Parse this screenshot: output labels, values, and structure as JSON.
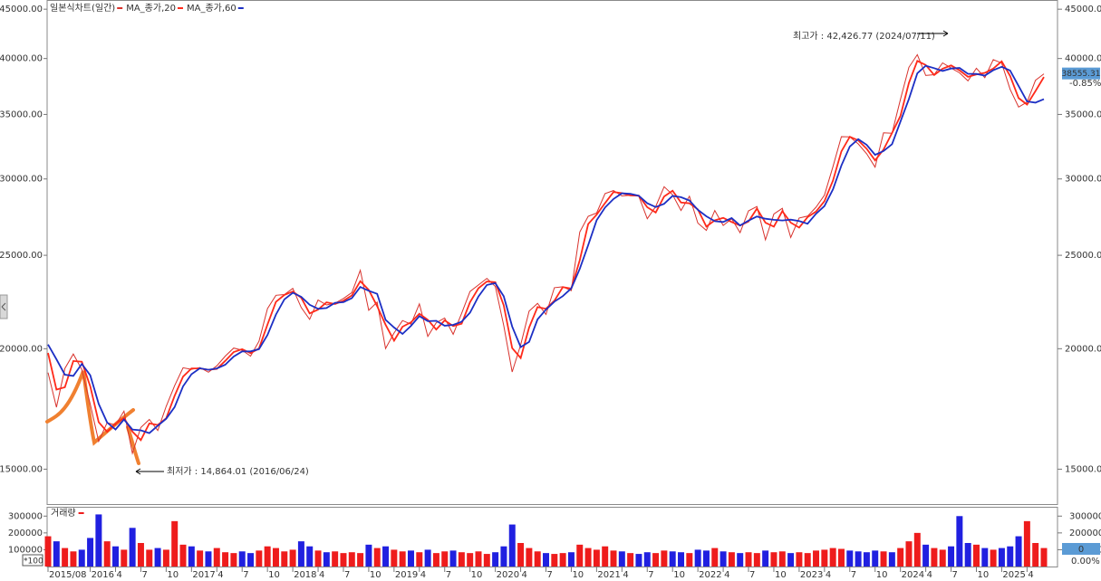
{
  "chart_data": [
    {
      "type": "line",
      "log_scale": true,
      "grid": false,
      "categories": [
        "2015/08",
        null,
        null,
        null,
        null,
        "2016",
        null,
        null,
        "4",
        null,
        null,
        "7",
        null,
        null,
        "10",
        null,
        null,
        "2017",
        null,
        null,
        "4",
        null,
        null,
        "7",
        null,
        null,
        "10",
        null,
        null,
        "2018",
        null,
        null,
        "4",
        null,
        null,
        "7",
        null,
        null,
        "10",
        null,
        null,
        "2019",
        null,
        null,
        "4",
        null,
        null,
        "7",
        null,
        null,
        "10",
        null,
        null,
        "2020",
        null,
        null,
        "4",
        null,
        null,
        "7",
        null,
        null,
        "10",
        null,
        null,
        "2021",
        null,
        null,
        "4",
        null,
        null,
        "7",
        null,
        null,
        "10",
        null,
        null,
        "2022",
        null,
        null,
        "4",
        null,
        null,
        "7",
        null,
        null,
        "10",
        null,
        null,
        "2023",
        null,
        null,
        "4",
        null,
        null,
        "7",
        null,
        null,
        "10",
        null,
        null,
        "2024",
        null,
        null,
        "4",
        null,
        null,
        "7",
        null,
        null,
        "10",
        null,
        null,
        "2025",
        null,
        null,
        "4",
        null,
        null
      ],
      "ylim": [
        13800,
        45900
      ],
      "yticks": [
        {
          "value": 15000,
          "label": "15000.00"
        },
        {
          "value": 20000,
          "label": "20000.00"
        },
        {
          "value": 25000,
          "label": "25000.00"
        },
        {
          "value": 30000,
          "label": "30000.00"
        },
        {
          "value": 35000,
          "label": "35000.00"
        },
        {
          "value": 40000,
          "label": "40000.00"
        },
        {
          "value": 45000,
          "label": "45000.00"
        }
      ],
      "series": [
        {
          "name": "일본식차트(일간)",
          "color": "#d8322c",
          "values": [
            18890,
            17390,
            19080,
            19750,
            19030,
            17520,
            16030,
            16760,
            16670,
            17230,
            15580,
            16570,
            16890,
            16450,
            17430,
            18310,
            19110,
            19040,
            19120,
            18910,
            19200,
            19650,
            20030,
            19930,
            19650,
            20360,
            22010,
            22720,
            22760,
            23100,
            22070,
            21450,
            22470,
            22200,
            22300,
            22550,
            22870,
            24120,
            21920,
            22350,
            20010,
            20770,
            21390,
            21210,
            22260,
            20600,
            21280,
            21520,
            20700,
            21760,
            22930,
            23290,
            23660,
            23210,
            21140,
            18920,
            20190,
            21880,
            22290,
            21710,
            23140,
            23190,
            22980,
            26430,
            27440,
            27660,
            28970,
            29180,
            28810,
            28860,
            28790,
            27280,
            28090,
            29450,
            28890,
            27820,
            28790,
            27000,
            26530,
            27820,
            26850,
            27280,
            26390,
            27800,
            28090,
            25940,
            27590,
            27970,
            26090,
            27330,
            27450,
            28040,
            28860,
            30890,
            33190,
            33170,
            32620,
            31860,
            30860,
            33490,
            33460,
            36290,
            39170,
            40370,
            38410,
            38490,
            39580,
            39100,
            38650,
            37920,
            39080,
            38210,
            39890,
            39570,
            37160,
            35620,
            36050,
            37970,
            38560
          ]
        },
        {
          "name": "MA_종가,20",
          "color": "#ff2a1a",
          "values": [
            19800,
            18140,
            18240,
            19420,
            19390,
            18280,
            16780,
            16400,
            16720,
            16950,
            16410,
            16080,
            16730,
            16670,
            16940,
            17870,
            18710,
            19080,
            19080,
            19020,
            19060,
            19430,
            19840,
            19980,
            19790,
            20010,
            21190,
            22370,
            22740,
            22930,
            22590,
            21760,
            21960,
            22340,
            22250,
            22430,
            22710,
            23500,
            23020,
            22140,
            21180,
            20390,
            21080,
            21300,
            21740,
            21430,
            20940,
            21400,
            21110,
            21230,
            22350,
            23110,
            23480,
            23440,
            22180,
            20030,
            19560,
            21040,
            22090,
            22000,
            22430,
            23170,
            23090,
            24710,
            26940,
            27550,
            28320,
            29080,
            29000,
            28840,
            28830,
            28040,
            27690,
            28770,
            29170,
            28360,
            28310,
            27900,
            26770,
            27180,
            27340,
            27070,
            26840,
            27100,
            27950,
            27020,
            26770,
            27780,
            27030,
            26710,
            27390,
            27750,
            28450,
            29880,
            32040,
            33180,
            32900,
            32240,
            31360,
            32180,
            33480,
            34880,
            37730,
            39770,
            39390,
            38450,
            39040,
            39340,
            38880,
            38290,
            38500,
            38650,
            39050,
            39730,
            38370,
            36390,
            35840,
            37010,
            38270
          ]
        },
        {
          "name": "MA_종가,60",
          "color": "#1c2fc4",
          "values": [
            20200,
            19500,
            18800,
            18740,
            19290,
            18770,
            17530,
            16770,
            16490,
            16890,
            16490,
            16460,
            16350,
            16640,
            16920,
            17400,
            18280,
            18820,
            19090,
            19020,
            19080,
            19250,
            19630,
            19870,
            19870,
            19980,
            20670,
            21700,
            22500,
            22860,
            22640,
            22210,
            22000,
            22040,
            22320,
            22350,
            22570,
            23180,
            22970,
            22800,
            21430,
            21040,
            20720,
            21120,
            21620,
            21360,
            21380,
            21130,
            21170,
            21330,
            21800,
            22660,
            23290,
            23390,
            22670,
            21090,
            20080,
            20330,
            21450,
            21960,
            22380,
            22680,
            23100,
            24200,
            25620,
            27180,
            28020,
            28600,
            28990,
            28950,
            28820,
            28310,
            28050,
            28270,
            28810,
            28720,
            28500,
            27870,
            27440,
            27120,
            27070,
            27320,
            26840,
            27160,
            27430,
            27280,
            27210,
            27170,
            27220,
            27130,
            26960,
            27610,
            28120,
            29260,
            30980,
            32420,
            32990,
            32550,
            31780,
            32070,
            32600,
            34410,
            36310,
            38610,
            39320,
            39090,
            38830,
            39060,
            39110,
            38560,
            38550,
            38400,
            38900,
            39220,
            38870,
            37450,
            36100,
            36000,
            36300
          ]
        }
      ],
      "last_price": {
        "value": 38555.31,
        "label": "38555.31"
      },
      "change_label": "-0.85%",
      "annotations": [
        {
          "text": "최고가 : 42,426.77 (2024/07/11)",
          "color": "#e0302a"
        },
        {
          "text": "최저가 : 14,864.01 (2016/06/24)",
          "color": "#2a3fb0"
        }
      ]
    },
    {
      "type": "bar",
      "title": "거래량",
      "unit_label": "*100",
      "color_up": "#ee1c1c",
      "color_down": "#2020e0",
      "ylim": [
        0,
        350000
      ],
      "yticks": [
        100000,
        200000,
        300000
      ],
      "values": [
        180000,
        150000,
        110000,
        90000,
        100000,
        170000,
        310000,
        150000,
        120000,
        100000,
        230000,
        140000,
        100000,
        110000,
        100000,
        270000,
        130000,
        120000,
        95000,
        90000,
        110000,
        85000,
        80000,
        90000,
        80000,
        95000,
        120000,
        110000,
        90000,
        100000,
        150000,
        120000,
        95000,
        85000,
        90000,
        80000,
        85000,
        80000,
        130000,
        110000,
        120000,
        100000,
        90000,
        95000,
        85000,
        100000,
        80000,
        90000,
        95000,
        85000,
        80000,
        90000,
        75000,
        85000,
        120000,
        250000,
        140000,
        110000,
        90000,
        80000,
        75000,
        80000,
        85000,
        130000,
        110000,
        100000,
        120000,
        95000,
        90000,
        80000,
        75000,
        85000,
        80000,
        95000,
        90000,
        85000,
        80000,
        100000,
        95000,
        110000,
        90000,
        85000,
        80000,
        85000,
        80000,
        95000,
        85000,
        90000,
        80000,
        85000,
        80000,
        95000,
        100000,
        110000,
        105000,
        95000,
        90000,
        85000,
        95000,
        90000,
        85000,
        110000,
        150000,
        200000,
        130000,
        110000,
        100000,
        120000,
        300000,
        140000,
        130000,
        110000,
        100000,
        110000,
        120000,
        180000,
        270000,
        140000,
        110000
      ],
      "last_label": "0",
      "change_label": "0.00%"
    }
  ]
}
